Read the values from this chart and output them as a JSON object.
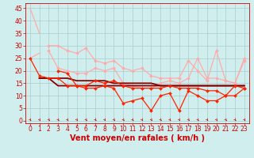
{
  "xlabel": "Vent moyen/en rafales ( km/h )",
  "xlabel_color": "#cc0000",
  "xlabel_fontsize": 7,
  "background_color": "#d0eeee",
  "grid_color": "#aacccc",
  "x": [
    0,
    1,
    2,
    3,
    4,
    5,
    6,
    7,
    8,
    9,
    10,
    11,
    12,
    13,
    14,
    15,
    16,
    17,
    18,
    19,
    20,
    21,
    22,
    23
  ],
  "yticks": [
    0,
    5,
    10,
    15,
    20,
    25,
    30,
    35,
    40,
    45
  ],
  "ylim": [
    -1,
    47
  ],
  "xlim": [
    -0.5,
    23.5
  ],
  "tick_color": "#cc0000",
  "tick_fontsize": 5.5,
  "series": [
    {
      "color": "#ffaaaa",
      "lw": 0.9,
      "marker": null,
      "ms": 0,
      "y": [
        45,
        35,
        null,
        null,
        null,
        null,
        null,
        null,
        null,
        null,
        null,
        null,
        null,
        null,
        null,
        null,
        null,
        null,
        null,
        null,
        null,
        null,
        null,
        null
      ]
    },
    {
      "color": "#ffaaaa",
      "lw": 0.9,
      "marker": "D",
      "ms": 2.0,
      "y": [
        null,
        null,
        30,
        30,
        28,
        27,
        29,
        24,
        23,
        24,
        21,
        20,
        21,
        18,
        17,
        17,
        17,
        24,
        20,
        16,
        28,
        16,
        15,
        24
      ]
    },
    {
      "color": "#ffaaaa",
      "lw": 0.9,
      "marker": null,
      "ms": 0,
      "y": [
        25,
        27,
        null,
        null,
        null,
        null,
        null,
        null,
        null,
        null,
        null,
        null,
        null,
        null,
        null,
        null,
        null,
        null,
        null,
        null,
        null,
        null,
        null,
        null
      ]
    },
    {
      "color": "#ffaaaa",
      "lw": 0.9,
      "marker": "D",
      "ms": 2.0,
      "y": [
        null,
        null,
        28,
        21,
        20,
        19,
        19,
        21,
        20,
        21,
        15,
        14,
        13,
        13,
        15,
        16,
        15,
        17,
        25,
        17,
        17,
        16,
        15,
        25
      ]
    },
    {
      "color": "#cc0000",
      "lw": 1.2,
      "marker": null,
      "ms": 0,
      "y": [
        null,
        null,
        null,
        null,
        null,
        null,
        null,
        null,
        null,
        null,
        null,
        null,
        null,
        null,
        null,
        null,
        null,
        null,
        null,
        null,
        null,
        null,
        null,
        null
      ]
    },
    {
      "color": "#880000",
      "lw": 1.3,
      "marker": null,
      "ms": 0,
      "y": [
        null,
        17,
        17,
        14,
        14,
        14,
        14,
        14,
        14,
        14,
        14,
        14,
        14,
        14,
        14,
        14,
        14,
        14,
        14,
        14,
        14,
        14,
        14,
        14
      ]
    },
    {
      "color": "#880000",
      "lw": 1.3,
      "marker": null,
      "ms": 0,
      "y": [
        null,
        17,
        17,
        17,
        17,
        16,
        16,
        16,
        16,
        15,
        15,
        15,
        15,
        15,
        14,
        14,
        14,
        14,
        14,
        14,
        14,
        14,
        14,
        14
      ]
    },
    {
      "color": "#ff2200",
      "lw": 0.9,
      "marker": "D",
      "ms": 2.0,
      "y": [
        25,
        18,
        17,
        17,
        14,
        14,
        14,
        16,
        15,
        16,
        14,
        13,
        13,
        13,
        13,
        14,
        13,
        13,
        13,
        12,
        12,
        10,
        10,
        13
      ]
    },
    {
      "color": "#ff2200",
      "lw": 0.9,
      "marker": "D",
      "ms": 2.0,
      "y": [
        null,
        null,
        null,
        20,
        19,
        14,
        13,
        13,
        14,
        13,
        7,
        8,
        9,
        4,
        10,
        11,
        4,
        12,
        10,
        8,
        8,
        10,
        14,
        13
      ]
    }
  ]
}
